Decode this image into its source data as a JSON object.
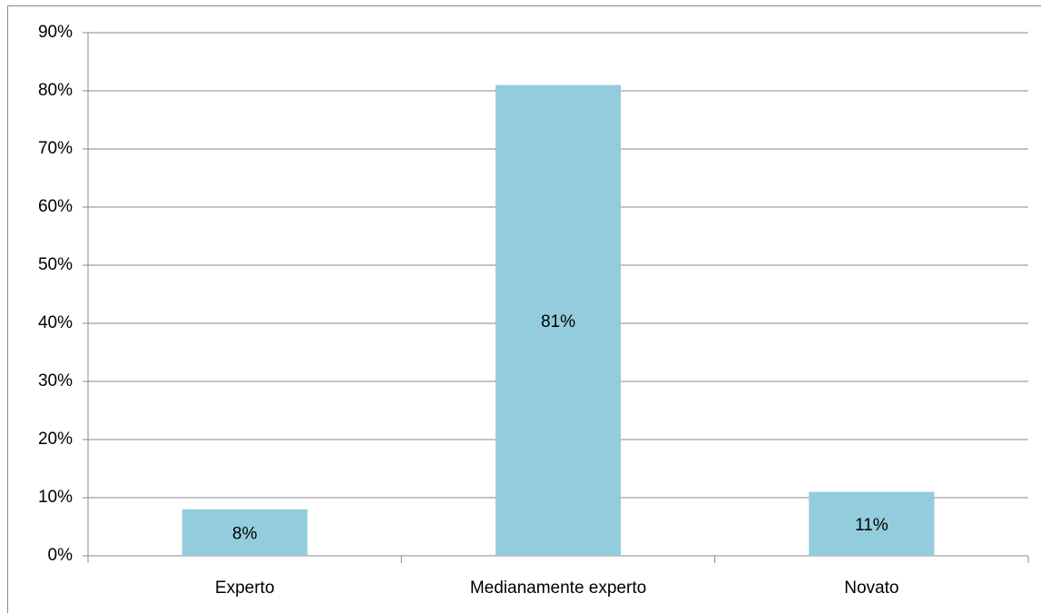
{
  "chart_data": {
    "type": "bar",
    "categories": [
      "Experto",
      "Medianamente experto",
      "Novato"
    ],
    "values": [
      8,
      81,
      11
    ],
    "value_labels": [
      "8%",
      "81%",
      "11%"
    ],
    "color": "#93cddd",
    "ylim": [
      0,
      90
    ],
    "yticks": [
      {
        "value": 0,
        "label": "0%"
      },
      {
        "value": 10,
        "label": "10%"
      },
      {
        "value": 20,
        "label": "20%"
      },
      {
        "value": 30,
        "label": "30%"
      },
      {
        "value": 40,
        "label": "40%"
      },
      {
        "value": 50,
        "label": "50%"
      },
      {
        "value": 60,
        "label": "60%"
      },
      {
        "value": 70,
        "label": "70%"
      },
      {
        "value": 80,
        "label": "80%"
      },
      {
        "value": 90,
        "label": "90%"
      }
    ],
    "grid": true
  }
}
